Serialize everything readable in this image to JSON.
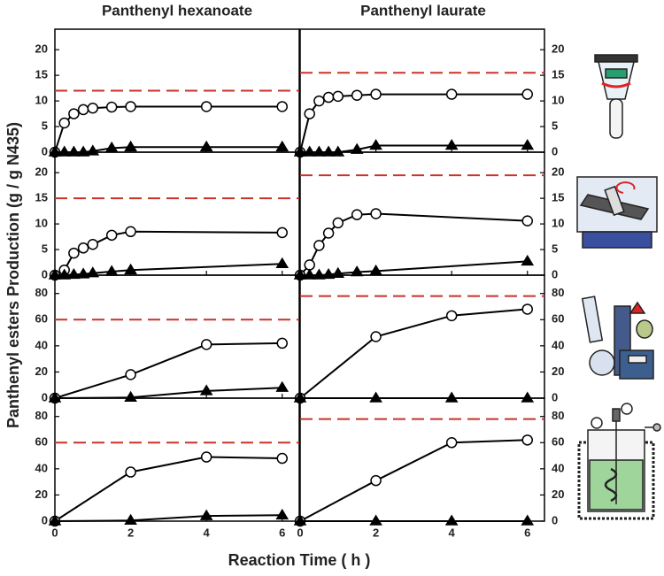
{
  "figure": {
    "column_titles": [
      "Panthenyl hexanoate",
      "Panthenyl laurate"
    ],
    "ylabel": "Panthenyl esters Production (g / g N435)",
    "xlabel": "Reaction Time ( h )"
  },
  "chart_data": [
    {
      "type": "line",
      "xlim": [
        0,
        6.45
      ],
      "xticks": [
        0,
        2,
        4,
        6
      ],
      "ylim": [
        0,
        24
      ],
      "yticks": [
        0,
        5,
        10,
        15,
        20
      ],
      "reference_line": {
        "value": 12,
        "color": "#c8322a"
      },
      "series": [
        {
          "marker": "circle",
          "color": "#000000",
          "x": [
            0,
            0.25,
            0.5,
            0.75,
            1,
            1.5,
            2,
            4,
            6
          ],
          "values": [
            0,
            5.7,
            7.5,
            8.3,
            8.6,
            8.8,
            8.9,
            8.9,
            8.9
          ]
        },
        {
          "marker": "triangle",
          "color": "#000000",
          "x": [
            0,
            0.25,
            0.5,
            0.75,
            1,
            1.5,
            2,
            4,
            6
          ],
          "values": [
            0,
            0,
            0,
            0,
            0.2,
            0.8,
            1,
            1,
            1
          ]
        }
      ]
    },
    {
      "type": "line",
      "xlim": [
        0,
        6.45
      ],
      "xticks": [
        0,
        2,
        4,
        6
      ],
      "ylim": [
        0,
        24
      ],
      "yticks": [
        0,
        5,
        10,
        15,
        20
      ],
      "reference_line": {
        "value": 15.5,
        "color": "#c8322a"
      },
      "series": [
        {
          "marker": "circle",
          "color": "#000000",
          "x": [
            0,
            0.25,
            0.5,
            0.75,
            1,
            1.5,
            2,
            4,
            6
          ],
          "values": [
            0,
            7.5,
            10,
            10.7,
            10.9,
            11.1,
            11.3,
            11.3,
            11.3
          ]
        },
        {
          "marker": "triangle",
          "color": "#000000",
          "x": [
            0,
            0.25,
            0.5,
            0.75,
            1,
            1.5,
            2,
            4,
            6
          ],
          "values": [
            0,
            0,
            0,
            0,
            0,
            0.5,
            1.3,
            1.3,
            1.3
          ]
        }
      ]
    },
    {
      "type": "line",
      "xlim": [
        0,
        6.45
      ],
      "xticks": [
        0,
        2,
        4,
        6
      ],
      "ylim": [
        0,
        24
      ],
      "yticks": [
        0,
        5,
        10,
        15,
        20
      ],
      "reference_line": {
        "value": 15,
        "color": "#c8322a"
      },
      "series": [
        {
          "marker": "circle",
          "color": "#000000",
          "x": [
            0,
            0.25,
            0.5,
            0.75,
            1,
            1.5,
            2,
            6
          ],
          "values": [
            0,
            1,
            4.3,
            5.3,
            6,
            7.8,
            8.5,
            8.3
          ]
        },
        {
          "marker": "triangle",
          "color": "#000000",
          "x": [
            0,
            0.25,
            0.5,
            0.75,
            1,
            1.5,
            2,
            6
          ],
          "values": [
            0,
            0,
            0.1,
            0.2,
            0.4,
            0.7,
            1,
            2.2
          ]
        }
      ]
    },
    {
      "type": "line",
      "xlim": [
        0,
        6.45
      ],
      "xticks": [
        0,
        2,
        4,
        6
      ],
      "ylim": [
        0,
        24
      ],
      "yticks": [
        0,
        5,
        10,
        15,
        20
      ],
      "reference_line": {
        "value": 19.5,
        "color": "#c8322a"
      },
      "series": [
        {
          "marker": "circle",
          "color": "#000000",
          "x": [
            0,
            0.25,
            0.5,
            0.75,
            1,
            1.5,
            2,
            6
          ],
          "values": [
            0,
            2,
            5.8,
            8.2,
            10.2,
            11.8,
            12,
            10.6
          ]
        },
        {
          "marker": "triangle",
          "color": "#000000",
          "x": [
            0,
            0.25,
            0.5,
            0.75,
            1,
            1.5,
            2,
            6
          ],
          "values": [
            0,
            0,
            0,
            0.1,
            0.3,
            0.6,
            0.8,
            2.7
          ]
        }
      ]
    },
    {
      "type": "line",
      "xlim": [
        0,
        6.45
      ],
      "xticks": [
        0,
        2,
        4,
        6
      ],
      "ylim": [
        0,
        94
      ],
      "yticks": [
        0,
        20,
        40,
        60,
        80
      ],
      "reference_line": {
        "value": 60,
        "color": "#c8322a"
      },
      "series": [
        {
          "marker": "circle",
          "color": "#000000",
          "x": [
            0,
            2,
            4,
            6
          ],
          "values": [
            0,
            18,
            41,
            42
          ]
        },
        {
          "marker": "triangle",
          "color": "#000000",
          "x": [
            0,
            2,
            4,
            6
          ],
          "values": [
            0,
            0.5,
            5.5,
            8
          ]
        }
      ]
    },
    {
      "type": "line",
      "xlim": [
        0,
        6.45
      ],
      "xticks": [
        0,
        2,
        4,
        6
      ],
      "ylim": [
        0,
        94
      ],
      "yticks": [
        0,
        20,
        40,
        60,
        80
      ],
      "reference_line": {
        "value": 78,
        "color": "#c8322a"
      },
      "series": [
        {
          "marker": "circle",
          "color": "#000000",
          "x": [
            0,
            2,
            4,
            6
          ],
          "values": [
            0,
            47,
            63,
            68
          ]
        },
        {
          "marker": "triangle",
          "color": "#000000",
          "x": [
            0,
            2,
            4,
            6
          ],
          "values": [
            0,
            0,
            0,
            0
          ]
        }
      ]
    },
    {
      "type": "line",
      "xlim": [
        0,
        6.45
      ],
      "xticks": [
        0,
        2,
        4,
        6
      ],
      "ylim": [
        0,
        94
      ],
      "yticks": [
        0,
        20,
        40,
        60,
        80
      ],
      "reference_line": {
        "value": 60,
        "color": "#c8322a"
      },
      "series": [
        {
          "marker": "circle",
          "color": "#000000",
          "x": [
            0,
            2,
            4,
            6
          ],
          "values": [
            0,
            37.5,
            49,
            48
          ]
        },
        {
          "marker": "triangle",
          "color": "#000000",
          "x": [
            0,
            2,
            4,
            6
          ],
          "values": [
            0,
            0.5,
            4,
            4.5
          ]
        }
      ]
    },
    {
      "type": "line",
      "xlim": [
        0,
        6.45
      ],
      "xticks": [
        0,
        2,
        4,
        6
      ],
      "ylim": [
        0,
        94
      ],
      "yticks": [
        0,
        20,
        40,
        60,
        80
      ],
      "reference_line": {
        "value": 78,
        "color": "#c8322a"
      },
      "series": [
        {
          "marker": "circle",
          "color": "#000000",
          "x": [
            0,
            2,
            4,
            6
          ],
          "values": [
            0,
            31,
            60,
            62
          ]
        },
        {
          "marker": "triangle",
          "color": "#000000",
          "x": [
            0,
            2,
            4,
            6
          ],
          "values": [
            0,
            0,
            0,
            0
          ]
        }
      ]
    }
  ]
}
